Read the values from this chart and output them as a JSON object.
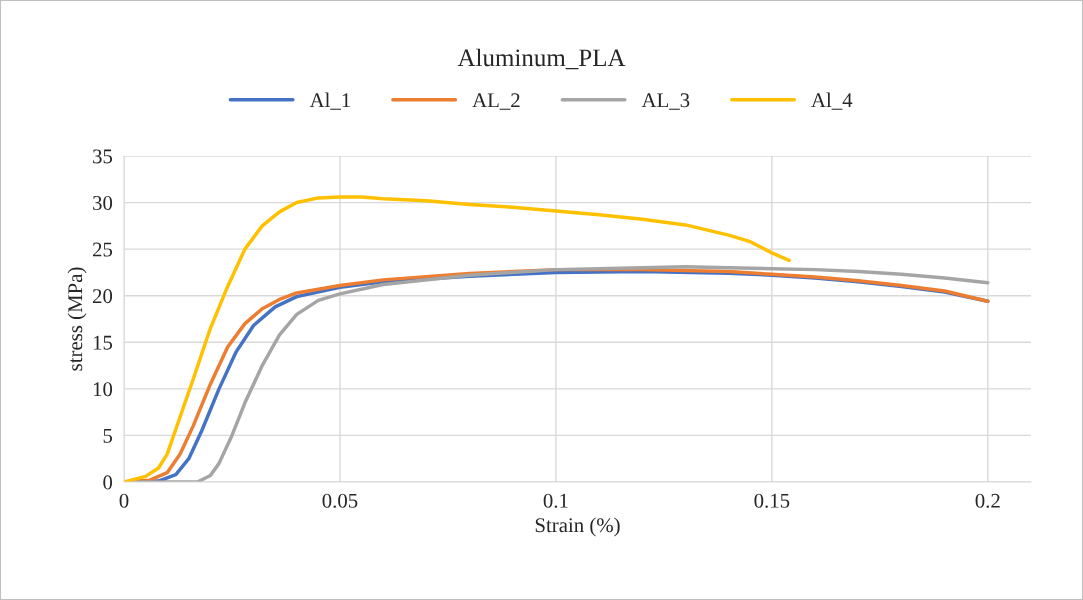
{
  "chart_data": {
    "type": "line",
    "title": "Aluminum_PLA",
    "xlabel": "Strain (%)",
    "ylabel": "stress (MPa)",
    "xlim": [
      0,
      0.21
    ],
    "xticks": [
      0,
      0.05,
      0.1,
      0.15,
      0.2
    ],
    "ylim": [
      0,
      35
    ],
    "yticks": [
      0,
      5,
      10,
      15,
      20,
      25,
      30,
      35
    ],
    "grid": true,
    "legend": "top",
    "marker": "none",
    "line_style": "solid",
    "series": [
      {
        "name": "Al_1",
        "color": "#4472c4",
        "x": [
          0,
          0.008,
          0.012,
          0.015,
          0.018,
          0.022,
          0.026,
          0.03,
          0.035,
          0.04,
          0.05,
          0.06,
          0.08,
          0.1,
          0.12,
          0.14,
          0.15,
          0.16,
          0.17,
          0.18,
          0.19,
          0.2
        ],
        "values": [
          0,
          0.1,
          0.8,
          2.5,
          5.5,
          10,
          14,
          16.8,
          18.8,
          19.9,
          20.9,
          21.5,
          22.1,
          22.5,
          22.6,
          22.4,
          22.2,
          21.9,
          21.5,
          21,
          20.4,
          19.4
        ]
      },
      {
        "name": "AL_2",
        "color": "#ed7d31",
        "x": [
          0,
          0.006,
          0.01,
          0.013,
          0.016,
          0.02,
          0.024,
          0.028,
          0.032,
          0.036,
          0.04,
          0.05,
          0.06,
          0.08,
          0.1,
          0.12,
          0.14,
          0.15,
          0.16,
          0.17,
          0.18,
          0.19,
          0.2
        ],
        "values": [
          0,
          0.2,
          1,
          3,
          6,
          10.5,
          14.5,
          17,
          18.6,
          19.6,
          20.3,
          21.1,
          21.7,
          22.4,
          22.8,
          22.8,
          22.6,
          22.3,
          22,
          21.6,
          21.1,
          20.5,
          19.4
        ]
      },
      {
        "name": "AL_3",
        "color": "#a5a5a5",
        "x": [
          0,
          0.017,
          0.02,
          0.022,
          0.025,
          0.028,
          0.032,
          0.036,
          0.04,
          0.045,
          0.05,
          0.06,
          0.08,
          0.1,
          0.12,
          0.13,
          0.14,
          0.15,
          0.16,
          0.17,
          0.18,
          0.19,
          0.2
        ],
        "values": [
          0,
          0,
          0.7,
          2,
          5,
          8.5,
          12.5,
          15.8,
          18,
          19.5,
          20.2,
          21.2,
          22.2,
          22.8,
          23,
          23.1,
          23,
          22.9,
          22.8,
          22.6,
          22.3,
          21.9,
          21.4
        ]
      },
      {
        "name": "Al_4",
        "color": "#ffc000",
        "x": [
          0,
          0.005,
          0.008,
          0.01,
          0.013,
          0.016,
          0.02,
          0.024,
          0.028,
          0.032,
          0.036,
          0.04,
          0.045,
          0.05,
          0.055,
          0.06,
          0.07,
          0.08,
          0.09,
          0.1,
          0.11,
          0.12,
          0.13,
          0.14,
          0.145,
          0.15,
          0.154
        ],
        "values": [
          0,
          0.6,
          1.5,
          3,
          7,
          11,
          16.5,
          21,
          25,
          27.5,
          29,
          30,
          30.5,
          30.6,
          30.6,
          30.4,
          30.2,
          29.8,
          29.5,
          29.1,
          28.7,
          28.2,
          27.6,
          26.5,
          25.8,
          24.6,
          23.8
        ]
      }
    ]
  }
}
